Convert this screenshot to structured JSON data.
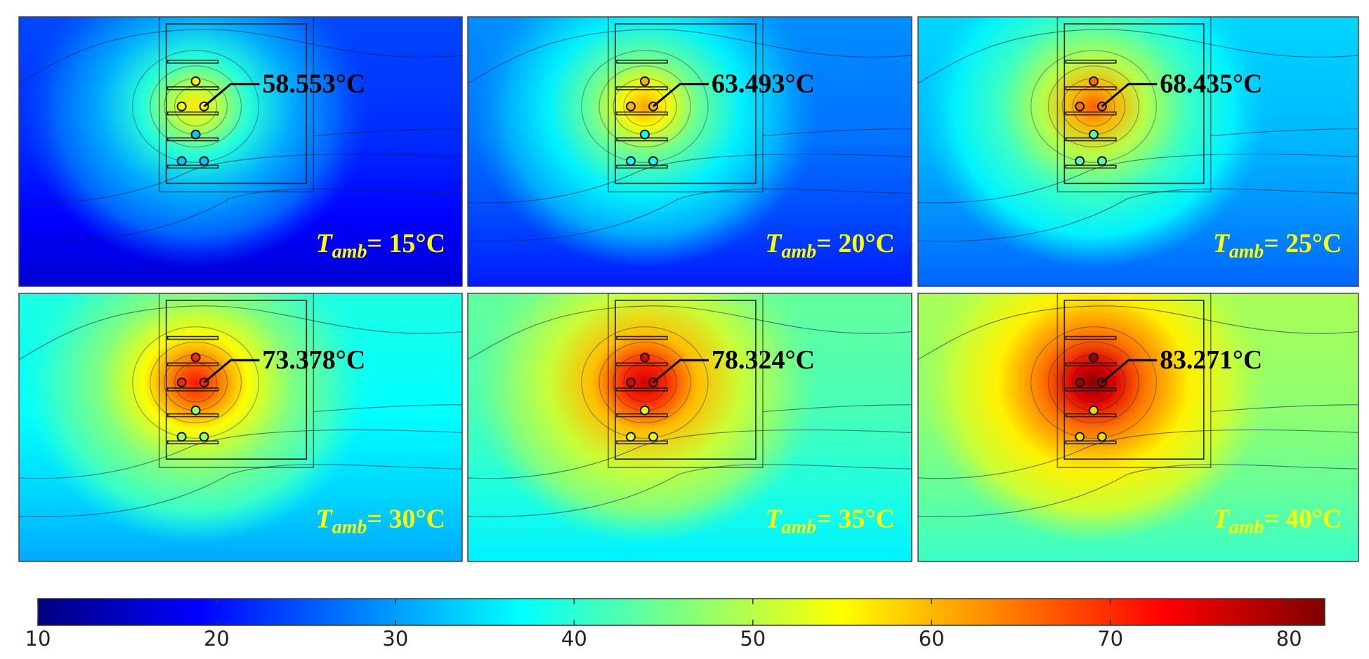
{
  "colors": {
    "colormap": [
      "#00007f",
      "#0000ff",
      "#0080ff",
      "#00ffff",
      "#80ff80",
      "#ffff00",
      "#ff8000",
      "#ff0000",
      "#7f0000"
    ],
    "label": "#ffff00",
    "callout": "#000000"
  },
  "colorbar": {
    "min": 10,
    "max": 82,
    "ticks": [
      "10",
      "20",
      "30",
      "40",
      "50",
      "60",
      "70",
      "80"
    ]
  },
  "panels": [
    {
      "ambient": 15,
      "label_var": "T",
      "label_sub": "amb",
      "label_rest": "= 15°C",
      "max_temp": "58.553°C"
    },
    {
      "ambient": 20,
      "label_var": "T",
      "label_sub": "amb",
      "label_rest": "= 20°C",
      "max_temp": "63.493°C"
    },
    {
      "ambient": 25,
      "label_var": "T",
      "label_sub": "amb",
      "label_rest": "= 25°C",
      "max_temp": "68.435°C"
    },
    {
      "ambient": 30,
      "label_var": "T",
      "label_sub": "amb",
      "label_rest": "= 30°C",
      "max_temp": "73.378°C"
    },
    {
      "ambient": 35,
      "label_var": "T",
      "label_sub": "amb",
      "label_rest": "= 35°C",
      "max_temp": "78.324°C"
    },
    {
      "ambient": 40,
      "label_var": "T",
      "label_sub": "amb",
      "label_rest": "= 40°C",
      "max_temp": "83.271°C"
    }
  ]
}
